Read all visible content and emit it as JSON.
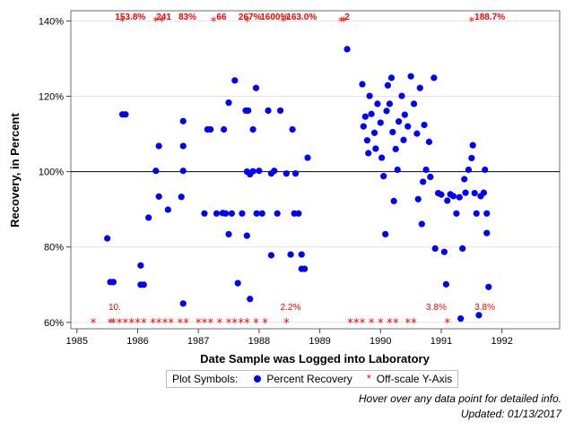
{
  "chart_data": {
    "type": "scatter",
    "xlabel": "Date Sample was Logged into Laboratory",
    "ylabel": "Recovery, in Percent",
    "xlim": [
      1984.9,
      1992.95
    ],
    "ylim": [
      58.3,
      142.7
    ],
    "x_ticks": [
      1985,
      1986,
      1987,
      1988,
      1989,
      1990,
      1991,
      1992
    ],
    "x_tick_labels": [
      "1985",
      "1986",
      "1987",
      "1988",
      "1989",
      "1990",
      "1991",
      "1992"
    ],
    "y_ticks": [
      60,
      80,
      100,
      120,
      140
    ],
    "y_tick_labels": [
      "60%",
      "80%",
      "100%",
      "120%",
      "140%"
    ],
    "reference_line": 100,
    "grid": "horizontal",
    "colors": {
      "recovery": "#0000ff",
      "offscale": "#ff0000"
    },
    "series": [
      {
        "name": "Percent Recovery",
        "marker": "circle",
        "points": [
          [
            1985.5,
            82.3
          ],
          [
            1985.55,
            70.7
          ],
          [
            1985.6,
            70.7
          ],
          [
            1985.75,
            115.2
          ],
          [
            1985.8,
            115.2
          ],
          [
            1986.05,
            75.1
          ],
          [
            1986.05,
            70.0
          ],
          [
            1986.1,
            70.0
          ],
          [
            1986.18,
            87.8
          ],
          [
            1986.3,
            100.2
          ],
          [
            1986.35,
            93.4
          ],
          [
            1986.35,
            106.8
          ],
          [
            1986.5,
            89.9
          ],
          [
            1986.72,
            93.3
          ],
          [
            1986.75,
            100.2
          ],
          [
            1986.75,
            106.8
          ],
          [
            1986.75,
            113.4
          ],
          [
            1986.75,
            65.0
          ],
          [
            1987.1,
            88.9
          ],
          [
            1987.15,
            111.2
          ],
          [
            1987.2,
            111.2
          ],
          [
            1987.3,
            88.9
          ],
          [
            1987.4,
            89.0
          ],
          [
            1987.42,
            111.2
          ],
          [
            1987.45,
            88.9
          ],
          [
            1987.5,
            118.3
          ],
          [
            1987.5,
            83.4
          ],
          [
            1987.55,
            88.9
          ],
          [
            1987.6,
            124.2
          ],
          [
            1987.65,
            70.4
          ],
          [
            1987.72,
            88.9
          ],
          [
            1987.78,
            116.2
          ],
          [
            1987.8,
            100.0
          ],
          [
            1987.82,
            116.2
          ],
          [
            1987.85,
            99.3
          ],
          [
            1987.9,
            111.2
          ],
          [
            1987.9,
            100.1
          ],
          [
            1987.95,
            122.2
          ],
          [
            1987.96,
            88.9
          ],
          [
            1987.8,
            83.0
          ],
          [
            1987.85,
            66.2
          ],
          [
            1988.0,
            100.2
          ],
          [
            1988.05,
            88.9
          ],
          [
            1988.15,
            116.2
          ],
          [
            1988.2,
            99.5
          ],
          [
            1988.2,
            77.8
          ],
          [
            1988.25,
            100.2
          ],
          [
            1988.3,
            88.9
          ],
          [
            1988.35,
            116.2
          ],
          [
            1988.45,
            99.5
          ],
          [
            1988.52,
            78.0
          ],
          [
            1988.55,
            111.2
          ],
          [
            1988.58,
            88.9
          ],
          [
            1988.6,
            99.5
          ],
          [
            1988.65,
            88.9
          ],
          [
            1988.7,
            74.2
          ],
          [
            1988.75,
            74.2
          ],
          [
            1988.8,
            103.7
          ],
          [
            1988.7,
            78.0
          ],
          [
            1989.45,
            132.5
          ],
          [
            1989.7,
            123.2
          ],
          [
            1989.72,
            112.0
          ],
          [
            1989.75,
            114.6
          ],
          [
            1989.78,
            108.3
          ],
          [
            1989.8,
            104.9
          ],
          [
            1989.82,
            120.1
          ],
          [
            1989.85,
            115.3
          ],
          [
            1989.9,
            110.3
          ],
          [
            1989.92,
            106.1
          ],
          [
            1989.95,
            118.0
          ],
          [
            1990.0,
            113.0
          ],
          [
            1990.02,
            103.7
          ],
          [
            1990.05,
            98.8
          ],
          [
            1990.08,
            83.4
          ],
          [
            1990.1,
            116.1
          ],
          [
            1990.12,
            122.9
          ],
          [
            1990.15,
            118.0
          ],
          [
            1990.18,
            124.9
          ],
          [
            1990.2,
            110.5
          ],
          [
            1990.22,
            92.2
          ],
          [
            1990.25,
            106.0
          ],
          [
            1990.28,
            100.5
          ],
          [
            1990.3,
            113.3
          ],
          [
            1990.35,
            120.1
          ],
          [
            1990.38,
            108.4
          ],
          [
            1990.4,
            115.1
          ],
          [
            1990.45,
            112.0
          ],
          [
            1990.5,
            125.3
          ],
          [
            1990.55,
            118.0
          ],
          [
            1990.6,
            110.1
          ],
          [
            1990.62,
            92.7
          ],
          [
            1990.65,
            122.2
          ],
          [
            1990.68,
            86.1
          ],
          [
            1990.7,
            97.3
          ],
          [
            1990.72,
            112.4
          ],
          [
            1990.75,
            100.5
          ],
          [
            1990.8,
            107.9
          ],
          [
            1990.82,
            98.6
          ],
          [
            1990.88,
            124.9
          ],
          [
            1990.9,
            79.6
          ],
          [
            1990.95,
            94.3
          ],
          [
            1991.0,
            93.9
          ],
          [
            1991.05,
            78.7
          ],
          [
            1991.08,
            70.1
          ],
          [
            1991.1,
            92.3
          ],
          [
            1991.15,
            94.0
          ],
          [
            1991.2,
            93.5
          ],
          [
            1991.25,
            88.9
          ],
          [
            1991.3,
            93.2
          ],
          [
            1991.35,
            79.6
          ],
          [
            1991.38,
            98.0
          ],
          [
            1991.4,
            94.4
          ],
          [
            1991.45,
            100.5
          ],
          [
            1991.5,
            103.6
          ],
          [
            1991.52,
            107.0
          ],
          [
            1991.55,
            94.3
          ],
          [
            1991.58,
            88.9
          ],
          [
            1991.62,
            61.9
          ],
          [
            1991.65,
            93.5
          ],
          [
            1991.7,
            94.4
          ],
          [
            1991.72,
            100.5
          ],
          [
            1991.75,
            88.9
          ],
          [
            1991.75,
            83.7
          ],
          [
            1991.78,
            69.4
          ],
          [
            1991.32,
            61.0
          ]
        ]
      },
      {
        "name": "Off-scale Y-Axis",
        "marker": "asterisk",
        "low_x": [
          1985.27,
          1985.55,
          1985.6,
          1985.7,
          1985.8,
          1985.9,
          1986.0,
          1986.1,
          1986.25,
          1986.35,
          1986.45,
          1986.55,
          1986.7,
          1986.8,
          1987.0,
          1987.1,
          1987.2,
          1987.35,
          1987.5,
          1987.6,
          1987.7,
          1987.8,
          1987.95,
          1988.1,
          1988.45,
          1989.5,
          1989.6,
          1989.7,
          1989.85,
          1990.0,
          1990.15,
          1990.25,
          1990.45,
          1990.55,
          1991.1
        ],
        "high_x": [
          1985.75,
          1986.3,
          1986.4,
          1987.25,
          1987.8,
          1988.4,
          1989.35,
          1989.4,
          1991.5
        ],
        "low_labels": [
          {
            "text": "10.",
            "x": 1985.52
          },
          {
            "text": "2.2%",
            "x": 1988.35
          },
          {
            "text": "3.8%",
            "x": 1990.75
          },
          {
            "text": "3.8%",
            "x": 1991.55
          }
        ],
        "high_labels": [
          {
            "text": "153.8%",
            "x": 1985.88
          },
          {
            "text": "241",
            "x": 1986.43
          },
          {
            "text": "83%",
            "x": 1986.82
          },
          {
            "text": "66",
            "x": 1987.38
          },
          {
            "text": "267%",
            "x": 1987.85
          },
          {
            "text": "1600%",
            "x": 1988.25
          },
          {
            "text": "163.0%",
            "x": 1988.7
          },
          {
            "text": "2",
            "x": 1989.45
          },
          {
            "text": "188.7%",
            "x": 1991.8
          }
        ]
      }
    ]
  },
  "legend": {
    "title": "Plot Symbols:",
    "item1": "Percent Recovery",
    "item2": "Off-scale Y-Axis",
    "star": "*"
  },
  "notes": {
    "hover": "Hover over any data point for detailed info.",
    "updated": "Updated: 01/13/2017"
  }
}
